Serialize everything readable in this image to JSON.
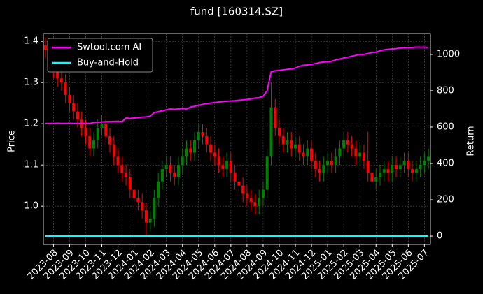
{
  "chart_data": {
    "type": "candlestick",
    "title": "fund [160314.SZ]",
    "ylabel": "Price",
    "y2label": "Return",
    "categories": [
      null,
      null,
      "2023-08",
      null,
      null,
      null,
      "2023-09",
      null,
      null,
      null,
      "2023-10",
      null,
      null,
      null,
      "2023-11",
      null,
      null,
      null,
      "2023-12",
      null,
      null,
      null,
      "2024-01",
      null,
      null,
      null,
      "2024-02",
      null,
      null,
      null,
      "2024-03",
      null,
      null,
      null,
      "2024-04",
      null,
      null,
      null,
      "2024-05",
      null,
      null,
      null,
      "2024-06",
      null,
      null,
      null,
      "2024-07",
      null,
      null,
      null,
      "2024-08",
      null,
      null,
      null,
      "2024-09",
      null,
      null,
      null,
      "2024-10",
      null,
      null,
      null,
      "2024-11",
      null,
      null,
      null,
      "2024-12",
      null,
      null,
      null,
      "2025-01",
      null,
      null,
      null,
      "2025-02",
      null,
      null,
      null,
      "2025-03",
      null,
      null,
      null,
      "2025-04",
      null,
      null,
      null,
      "2025-05",
      null,
      null,
      null,
      "2025-06",
      null,
      null,
      null,
      "2025-07",
      null
    ],
    "open": [
      1.39,
      1.38,
      1.36,
      1.33,
      1.31,
      1.3,
      1.27,
      1.25,
      1.23,
      1.21,
      1.19,
      1.17,
      1.14,
      1.16,
      1.19,
      1.2,
      1.17,
      1.15,
      1.12,
      1.1,
      1.08,
      1.07,
      1.04,
      1.02,
      1.01,
      0.99,
      0.96,
      0.97,
      1.02,
      1.06,
      1.09,
      1.1,
      1.08,
      1.07,
      1.1,
      1.12,
      1.14,
      1.13,
      1.16,
      1.18,
      1.17,
      1.15,
      1.13,
      1.12,
      1.1,
      1.09,
      1.11,
      1.08,
      1.06,
      1.05,
      1.03,
      1.02,
      1.01,
      1.0,
      1.02,
      1.04,
      1.12,
      1.24,
      1.19,
      1.17,
      1.15,
      1.16,
      1.14,
      1.15,
      1.13,
      1.12,
      1.14,
      1.11,
      1.09,
      1.08,
      1.1,
      1.11,
      1.1,
      1.12,
      1.14,
      1.16,
      1.15,
      1.14,
      1.12,
      1.13,
      1.11,
      1.08,
      1.06,
      1.07,
      1.08,
      1.09,
      1.08,
      1.1,
      1.09,
      1.1,
      1.11,
      1.09,
      1.08,
      1.09,
      1.1,
      1.11
    ],
    "high": [
      1.41,
      1.4,
      1.38,
      1.35,
      1.33,
      1.32,
      1.29,
      1.27,
      1.25,
      1.23,
      1.21,
      1.19,
      1.18,
      1.21,
      1.22,
      1.22,
      1.19,
      1.17,
      1.14,
      1.12,
      1.1,
      1.09,
      1.06,
      1.04,
      1.03,
      1.01,
      0.99,
      1.04,
      1.08,
      1.11,
      1.12,
      1.12,
      1.1,
      1.12,
      1.14,
      1.16,
      1.16,
      1.18,
      1.2,
      1.2,
      1.19,
      1.17,
      1.15,
      1.14,
      1.12,
      1.13,
      1.13,
      1.1,
      1.08,
      1.07,
      1.05,
      1.04,
      1.03,
      1.04,
      1.06,
      1.14,
      1.3,
      1.26,
      1.21,
      1.19,
      1.18,
      1.18,
      1.17,
      1.17,
      1.15,
      1.16,
      1.16,
      1.13,
      1.11,
      1.12,
      1.13,
      1.13,
      1.14,
      1.16,
      1.18,
      1.18,
      1.17,
      1.16,
      1.15,
      1.15,
      1.18,
      1.1,
      1.09,
      1.1,
      1.11,
      1.11,
      1.12,
      1.12,
      1.12,
      1.13,
      1.13,
      1.11,
      1.11,
      1.12,
      1.13,
      1.14
    ],
    "low": [
      1.36,
      1.34,
      1.31,
      1.29,
      1.28,
      1.25,
      1.23,
      1.21,
      1.19,
      1.17,
      1.15,
      1.12,
      1.12,
      1.14,
      1.17,
      1.15,
      1.13,
      1.1,
      1.08,
      1.06,
      1.05,
      1.02,
      1.0,
      0.99,
      0.97,
      0.93,
      0.94,
      0.95,
      1.0,
      1.04,
      1.07,
      1.06,
      1.05,
      1.05,
      1.08,
      1.1,
      1.11,
      1.11,
      1.14,
      1.15,
      1.13,
      1.11,
      1.1,
      1.08,
      1.07,
      1.07,
      1.06,
      1.04,
      1.03,
      1.01,
      1.0,
      0.99,
      0.98,
      0.98,
      1.0,
      1.02,
      1.1,
      1.17,
      1.15,
      1.13,
      1.13,
      1.12,
      1.12,
      1.11,
      1.1,
      1.1,
      1.09,
      1.07,
      1.06,
      1.06,
      1.08,
      1.08,
      1.08,
      1.1,
      1.12,
      1.13,
      1.12,
      1.1,
      1.1,
      1.09,
      1.06,
      1.02,
      1.04,
      1.05,
      1.06,
      1.06,
      1.06,
      1.07,
      1.07,
      1.08,
      1.07,
      1.06,
      1.06,
      1.07,
      1.08,
      1.09
    ],
    "close": [
      1.38,
      1.36,
      1.33,
      1.31,
      1.3,
      1.27,
      1.25,
      1.23,
      1.21,
      1.19,
      1.17,
      1.14,
      1.16,
      1.19,
      1.2,
      1.17,
      1.15,
      1.12,
      1.1,
      1.08,
      1.07,
      1.04,
      1.02,
      1.01,
      0.99,
      0.96,
      0.97,
      1.02,
      1.06,
      1.09,
      1.1,
      1.08,
      1.07,
      1.1,
      1.12,
      1.14,
      1.13,
      1.16,
      1.18,
      1.17,
      1.15,
      1.13,
      1.12,
      1.1,
      1.09,
      1.11,
      1.08,
      1.06,
      1.05,
      1.03,
      1.02,
      1.01,
      1.0,
      1.02,
      1.04,
      1.12,
      1.24,
      1.19,
      1.17,
      1.15,
      1.16,
      1.14,
      1.15,
      1.13,
      1.12,
      1.14,
      1.11,
      1.09,
      1.08,
      1.1,
      1.11,
      1.1,
      1.12,
      1.14,
      1.16,
      1.15,
      1.14,
      1.12,
      1.13,
      1.11,
      1.08,
      1.06,
      1.07,
      1.08,
      1.09,
      1.08,
      1.1,
      1.09,
      1.1,
      1.11,
      1.09,
      1.08,
      1.09,
      1.1,
      1.11,
      1.12
    ],
    "up_color": "#008000",
    "down_color": "#ff0000",
    "series": [
      {
        "name": "Swtool.com AI",
        "color": "#ff00ff",
        "axis": "y2",
        "values": [
          620,
          620,
          620,
          621,
          620,
          620,
          621,
          620,
          620,
          620,
          621,
          620,
          625,
          626,
          628,
          630,
          630,
          631,
          632,
          630,
          650,
          648,
          650,
          652,
          655,
          656,
          660,
          680,
          685,
          690,
          695,
          700,
          698,
          700,
          702,
          700,
          710,
          715,
          720,
          725,
          730,
          732,
          735,
          738,
          740,
          742,
          744,
          745,
          748,
          750,
          752,
          755,
          760,
          762,
          770,
          800,
          905,
          910,
          912,
          915,
          918,
          920,
          925,
          935,
          940,
          942,
          945,
          950,
          955,
          958,
          960,
          962,
          970,
          975,
          980,
          985,
          990,
          995,
          1000,
          1000,
          1005,
          1010,
          1012,
          1020,
          1025,
          1028,
          1030,
          1032,
          1035,
          1036,
          1038,
          1038,
          1040,
          1040,
          1040,
          1038
        ]
      },
      {
        "name": "Buy-and-Hold",
        "color": "#00ffff",
        "axis": "y2",
        "values": [
          0,
          0,
          0,
          0,
          0,
          0,
          0,
          0,
          0,
          0,
          0,
          0,
          0,
          0,
          0,
          0,
          0,
          0,
          0,
          0,
          0,
          0,
          0,
          0,
          0,
          0,
          0,
          0,
          0,
          0,
          0,
          0,
          0,
          0,
          0,
          0,
          0,
          0,
          0,
          0,
          0,
          0,
          0,
          0,
          0,
          0,
          0,
          0,
          0,
          0,
          0,
          0,
          0,
          0,
          0,
          0,
          0,
          0,
          0,
          0,
          0,
          0,
          0,
          0,
          0,
          0,
          0,
          0,
          0,
          0,
          0,
          0,
          0,
          0,
          0,
          0,
          0,
          0,
          0,
          0,
          0,
          0,
          0,
          0,
          0,
          0,
          0,
          0,
          0,
          0,
          0,
          0,
          0,
          0,
          0,
          0
        ]
      }
    ],
    "ylim": [
      0.907,
      1.419
    ],
    "yticks": [
      {
        "value": 1,
        "label": "1.0"
      },
      1.1,
      1.2,
      1.3,
      1.4
    ],
    "y2lim": [
      -46,
      1115
    ],
    "y2ticks": [
      0,
      200,
      400,
      600,
      800,
      1000
    ],
    "grid": true,
    "legend": "upper left"
  }
}
